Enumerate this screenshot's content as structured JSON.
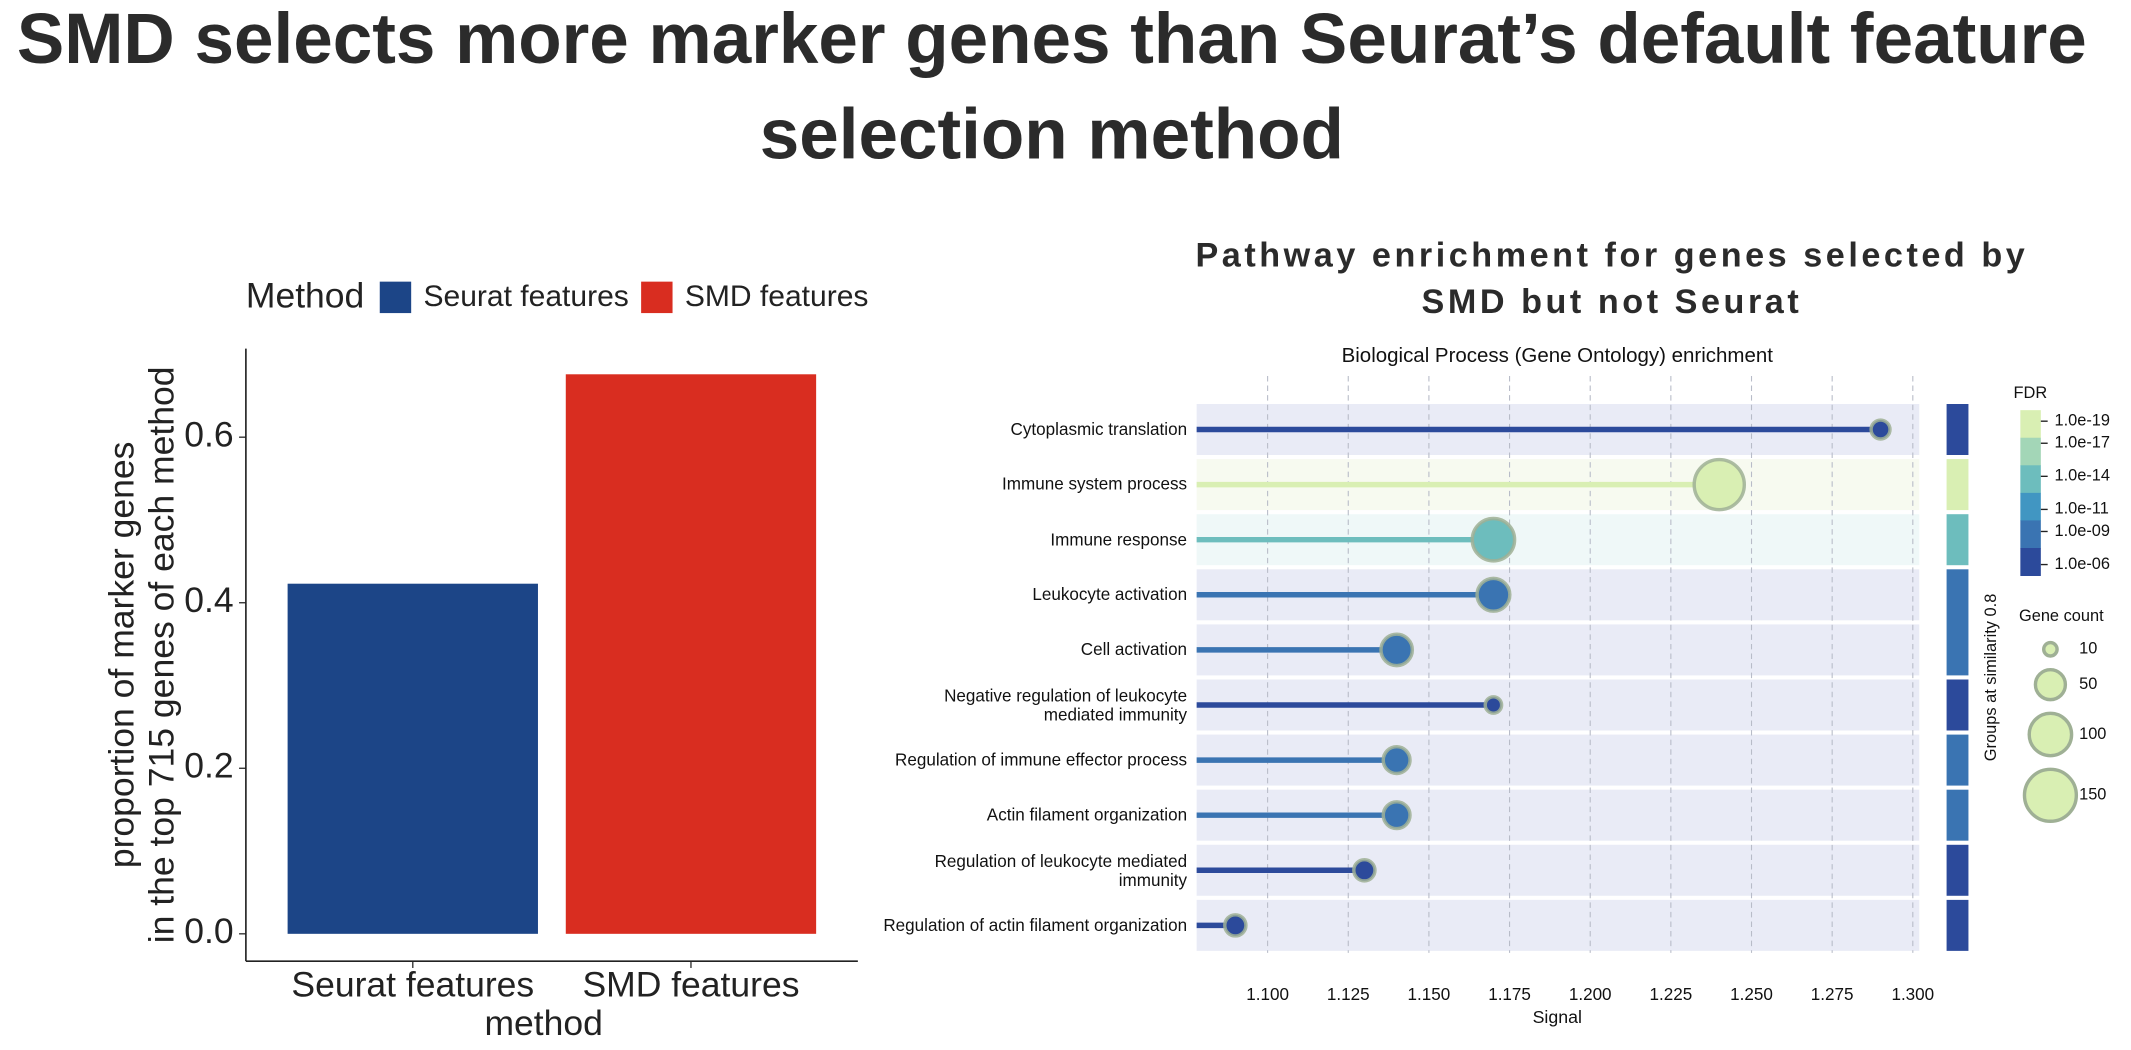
{
  "title": "SMD selects more marker genes than Seurat’s default feature selection method",
  "chart_data": [
    {
      "type": "bar",
      "legend_title": "Method",
      "x_label": "method",
      "y_label": [
        "proportion of marker genes",
        "in the top 715 genes of each method"
      ],
      "categories": [
        "Seurat features",
        "SMD features"
      ],
      "values": [
        0.423,
        0.676
      ],
      "colors": [
        "#1c4587",
        "#d92d20"
      ],
      "ylim": [
        -0.033,
        0.707
      ],
      "yticks": [
        {
          "value": 0,
          "label": "0.0"
        },
        0.2,
        0.4,
        0.6
      ],
      "legend": "top"
    },
    {
      "type": "lollipop",
      "title": "Pathway enrichment for genes selected by SMD but not Seurat",
      "subtitle": "Biological Process (Gene Ontology) enrichment",
      "x_label": "Signal",
      "groups_label": "Groups at similarity 0.8",
      "categories": [
        "Cytoplasmic translation",
        "Immune system process",
        "Immune response",
        "Leukocyte activation",
        "Cell activation",
        "Negative regulation of leukocyte mediated immunity",
        "Regulation of immune effector process",
        "Actin filament organization",
        "Regulation of leukocyte mediated immunity",
        "Regulation of actin filament organization"
      ],
      "values": [
        1.29,
        1.24,
        1.17,
        1.17,
        1.14,
        1.17,
        1.14,
        1.14,
        1.13,
        1.09
      ],
      "gene_counts": [
        20,
        140,
        100,
        60,
        55,
        15,
        40,
        40,
        25,
        25
      ],
      "fdr": [
        1e-06,
        1e-19,
        1e-14,
        1e-10,
        1e-10,
        1e-06,
        1e-09,
        1e-09,
        1e-07,
        1e-06
      ],
      "xlim": [
        1.078,
        1.302
      ],
      "xticks": [
        {
          "value": 1.1,
          "label": "1.100"
        },
        {
          "value": 1.125,
          "label": "1.125"
        },
        {
          "value": 1.15,
          "label": "1.150"
        },
        {
          "value": 1.175,
          "label": "1.175"
        },
        {
          "value": 1.2,
          "label": "1.200"
        },
        {
          "value": 1.225,
          "label": "1.225"
        },
        {
          "value": 1.25,
          "label": "1.250"
        },
        {
          "value": 1.275,
          "label": "1.275"
        },
        {
          "value": 1.3,
          "label": "1.300"
        }
      ],
      "grid": true,
      "fdr_title": "FDR",
      "fdr_log": true,
      "fdr_lim": [
        1e-20,
        1e-05
      ],
      "fdr_colors": [
        "#d9efb3",
        "#a3d6b7",
        "#6dbdbd",
        "#4196c2",
        "#3a74b2",
        "#2c4a9b"
      ],
      "fdr_ticks": [
        {
          "value": 1e-19,
          "label": "1.0e-19"
        },
        {
          "value": 1e-17,
          "label": "1.0e-17"
        },
        {
          "value": 1e-14,
          "label": "1.0e-14"
        },
        {
          "value": 1e-11,
          "label": "1.0e-11"
        },
        {
          "value": 1e-09,
          "label": "1.0e-09"
        },
        {
          "value": 1e-06,
          "label": "1.0e-06"
        }
      ],
      "size_title": "Gene count",
      "size_ticks": [
        10,
        50,
        100,
        150
      ]
    }
  ]
}
